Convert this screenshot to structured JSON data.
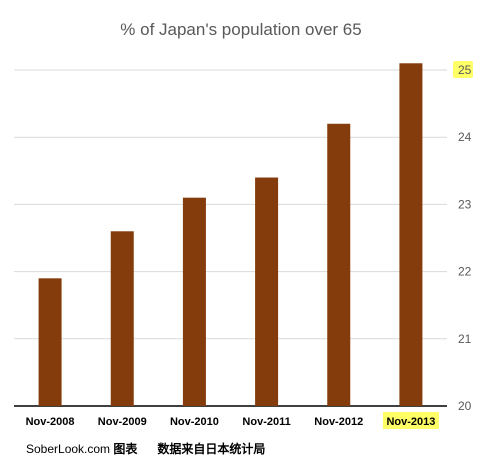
{
  "chart_data": {
    "type": "bar",
    "title": "% of Japan's population over 65",
    "categories": [
      "Nov-2008",
      "Nov-2009",
      "Nov-2010",
      "Nov-2011",
      "Nov-2012",
      "Nov-2013"
    ],
    "values": [
      21.9,
      22.6,
      23.1,
      23.4,
      24.2,
      25.1
    ],
    "ylim": [
      20,
      25.5
    ],
    "yticks": [
      20,
      21,
      22,
      23,
      24,
      25
    ],
    "y_axis_side": "right",
    "grid": true,
    "bar_color": "#843C0C",
    "highlight_color": "#FFFF66",
    "highlighted_tick": 25,
    "highlighted_category": "Nov-2013"
  },
  "footer": {
    "site": "SoberLook.com",
    "label1": "图表",
    "label2": "数据来自日本统计局"
  }
}
